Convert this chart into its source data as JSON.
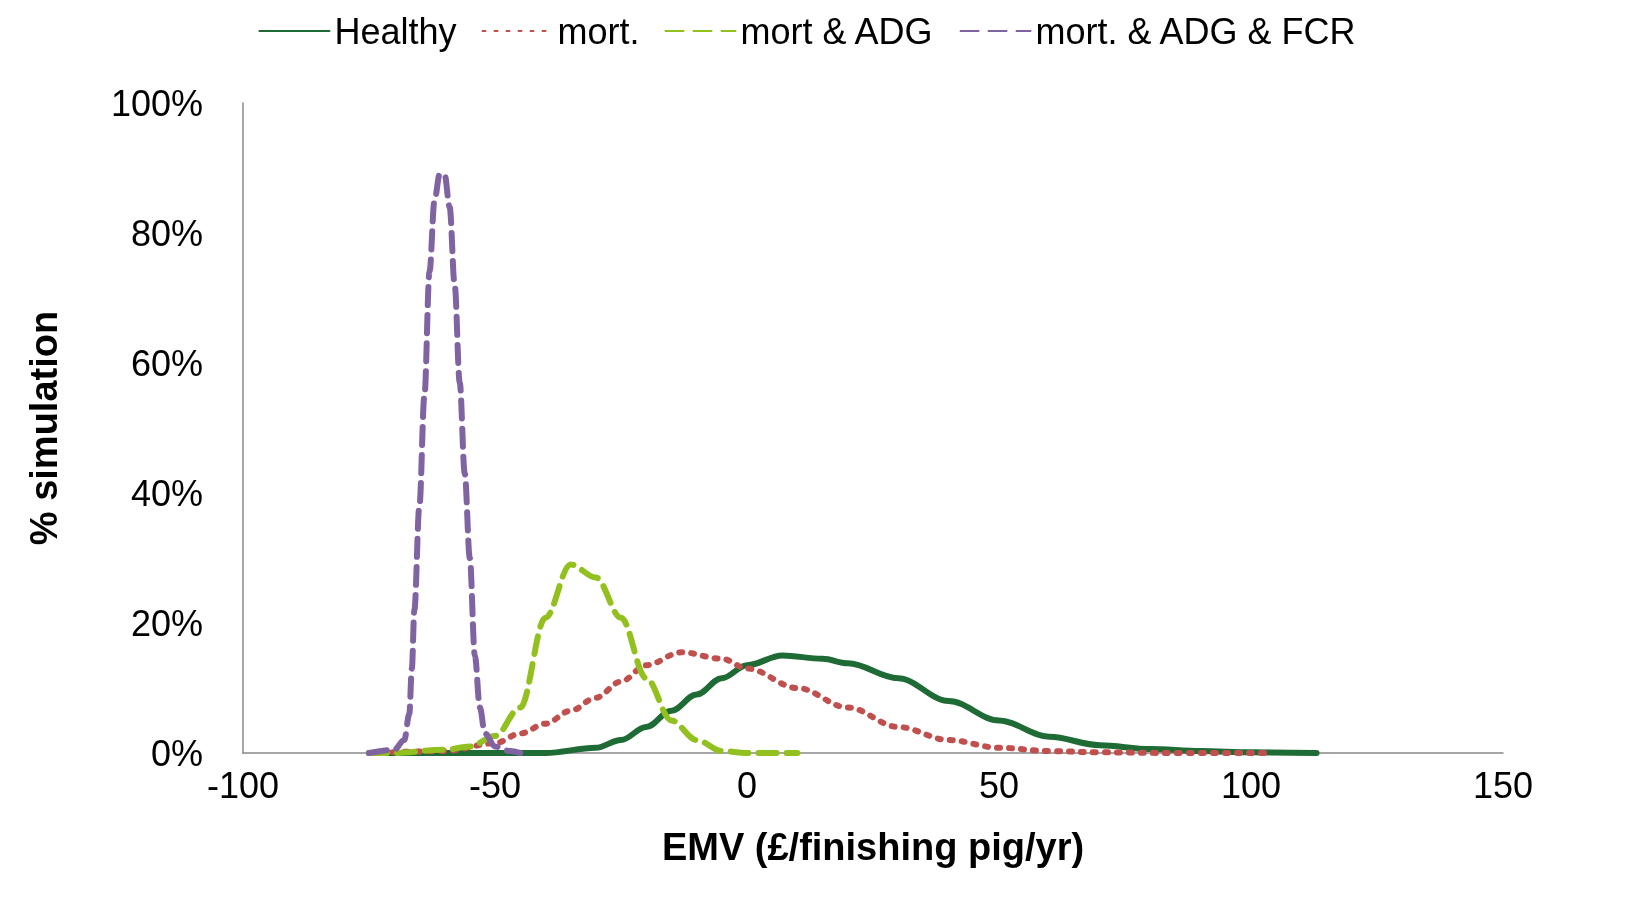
{
  "chart_data": {
    "type": "line",
    "xlabel": "EMV (£/finishing pig/yr)",
    "ylabel": "% simulation",
    "xlim": [
      -100,
      150
    ],
    "xticks": [
      -100,
      -50,
      0,
      50,
      100,
      150
    ],
    "ylim": [
      0,
      100
    ],
    "yticks": [
      {
        "value": 0,
        "label": "0%"
      },
      {
        "value": 20,
        "label": "20%"
      },
      {
        "value": 40,
        "label": "40%"
      },
      {
        "value": 60,
        "label": "60%"
      },
      {
        "value": 80,
        "label": "80%"
      },
      {
        "value": 100,
        "label": "100%"
      }
    ],
    "grid": false,
    "legend": "top",
    "marker": "none",
    "series": [
      {
        "name": "Healthy",
        "color": "#1e6b35",
        "line_style": "solid",
        "x": [
          -75,
          -50,
          -40,
          -30,
          -25,
          -20,
          -15,
          -10,
          -5,
          0,
          7,
          15,
          20,
          30,
          40,
          50,
          60,
          70,
          80,
          90,
          100,
          113
        ],
        "values": [
          0,
          0,
          0,
          0.8,
          2,
          4,
          6.5,
          9,
          11.5,
          13.5,
          15,
          14.5,
          13.8,
          11.5,
          8,
          5,
          2.5,
          1.2,
          0.6,
          0.3,
          0.1,
          0
        ]
      },
      {
        "name": "mort.",
        "color": "#c0504d",
        "line_style": "dotted",
        "x": [
          -75,
          -60,
          -50,
          -45,
          -40,
          -35,
          -30,
          -25,
          -20,
          -13,
          -5,
          0,
          10,
          20,
          30,
          40,
          50,
          60,
          70,
          85,
          103
        ],
        "values": [
          0,
          0.3,
          1.5,
          3,
          4.5,
          6.5,
          8.5,
          11,
          13.5,
          15.5,
          14.5,
          13,
          10,
          7,
          4,
          2,
          0.8,
          0.3,
          0.1,
          0,
          0
        ]
      },
      {
        "name": "mort & ADG",
        "color": "#92c01f",
        "line_style": "dashed",
        "x": [
          -75,
          -70,
          -60,
          -55,
          -50,
          -45,
          -40,
          -35,
          -30,
          -25,
          -20,
          -15,
          -10,
          -5,
          0,
          10
        ],
        "values": [
          0,
          0,
          0.5,
          1,
          2.6,
          7,
          20.8,
          29,
          27,
          20.8,
          11.5,
          5,
          2,
          0.3,
          0,
          0
        ]
      },
      {
        "name": "mort. & ADG & FCR",
        "color": "#8064a2",
        "line_style": "dashed",
        "x": [
          -75,
          -70,
          -68,
          -67,
          -66.5,
          -66,
          -65,
          -64,
          -63,
          -62,
          -61,
          -60,
          -59,
          -58,
          -57,
          -56,
          -55,
          -54,
          -53,
          -52,
          -50,
          -47,
          -45
        ],
        "values": [
          0,
          0.5,
          2,
          6,
          13,
          22,
          38,
          55,
          74,
          85,
          89,
          89,
          84,
          72,
          57,
          43,
          30,
          15,
          7,
          3,
          1,
          0.3,
          0
        ]
      }
    ]
  }
}
